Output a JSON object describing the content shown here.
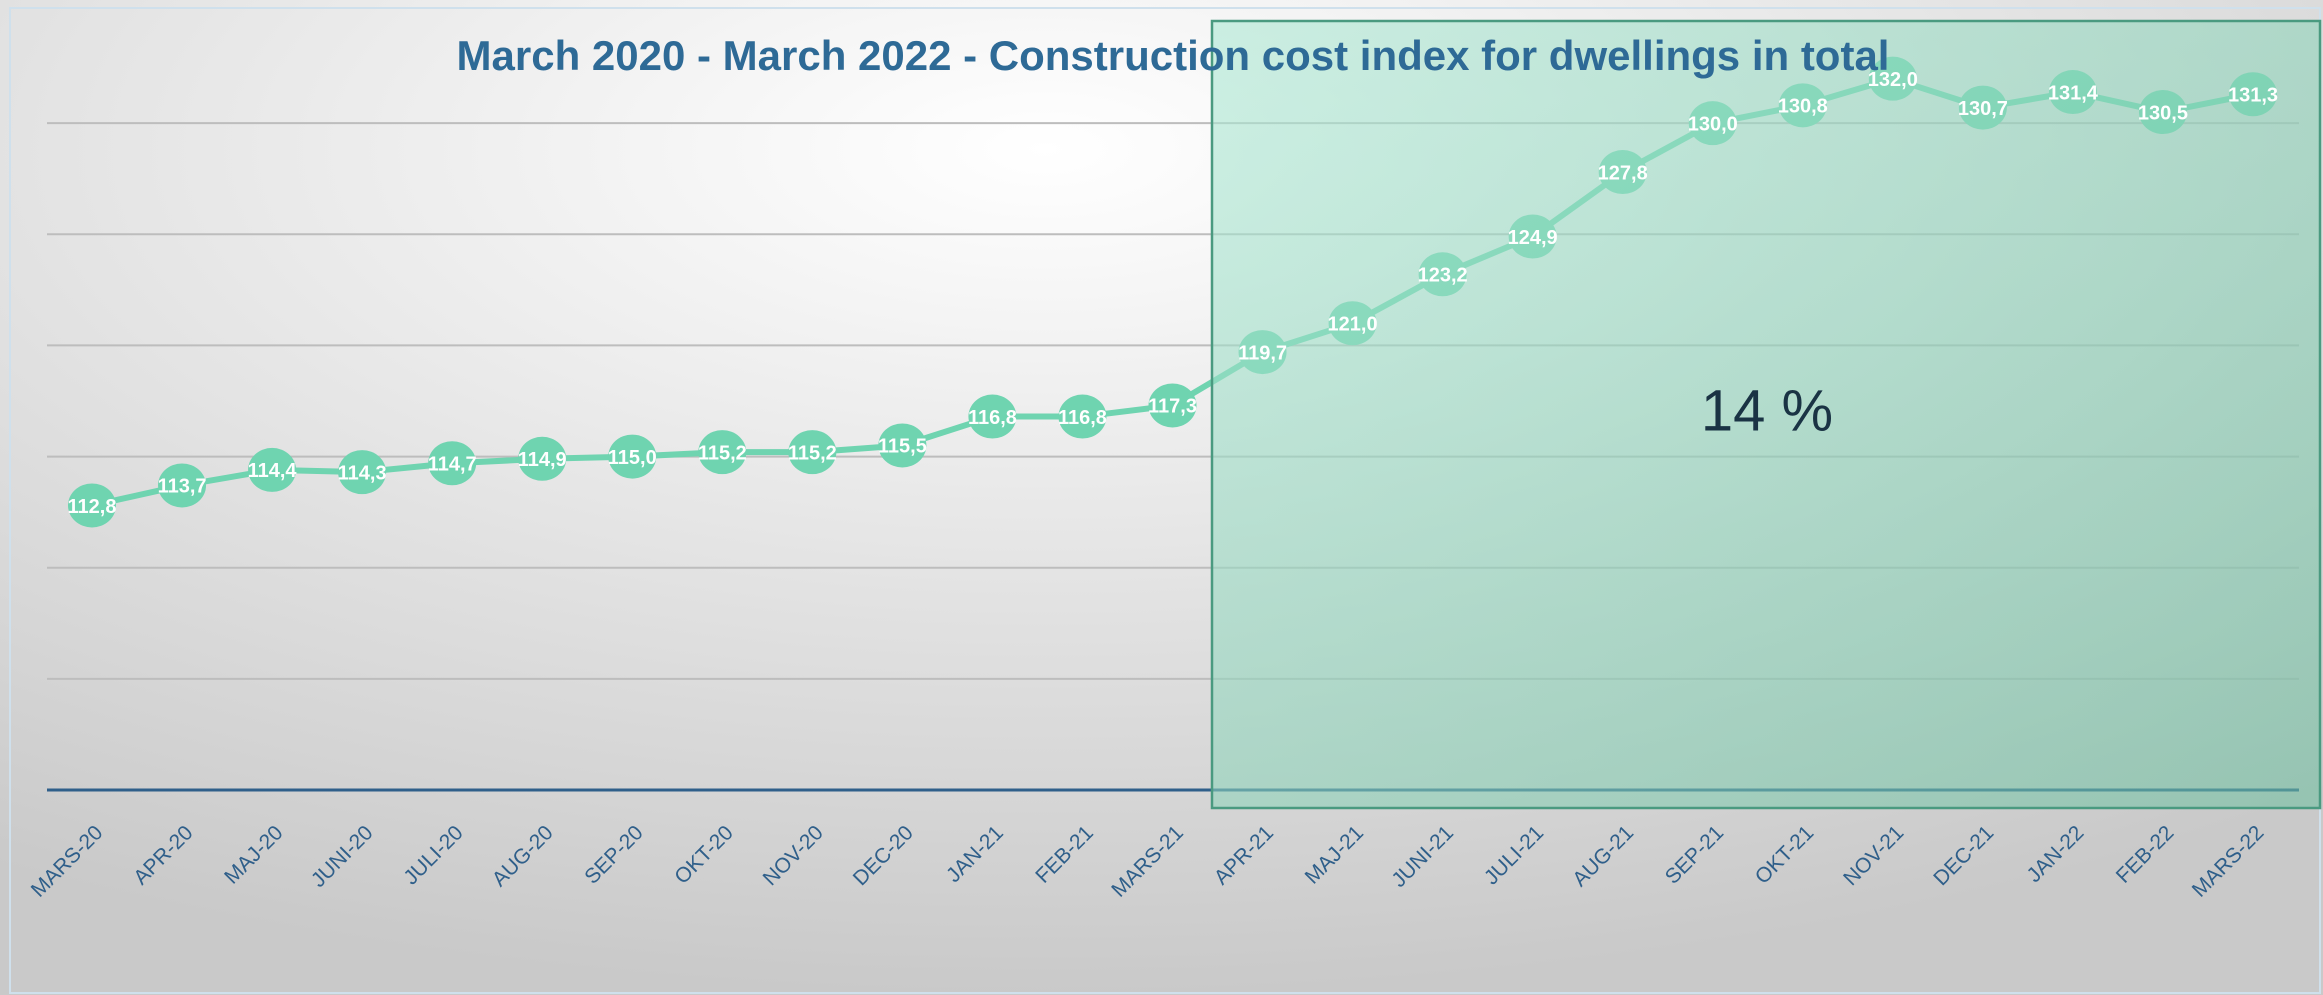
{
  "chart_data": {
    "type": "line",
    "title": "March 2020 - March 2022 - Construction cost index for dwellings in total",
    "annotation": "14 %",
    "categories": [
      "MARS-20",
      "APR-20",
      "MAJ-20",
      "JUNI-20",
      "JULI-20",
      "AUG-20",
      "SEP-20",
      "OKT-20",
      "NOV-20",
      "DEC-20",
      "JAN-21",
      "FEB-21",
      "MARS-21",
      "APR-21",
      "MAJ-21",
      "JUNI-21",
      "JULI-21",
      "AUG-21",
      "SEP-21",
      "OKT-21",
      "NOV-21",
      "DEC-21",
      "JAN-22",
      "FEB-22",
      "MARS-22"
    ],
    "series": [
      {
        "name": "Construction cost index",
        "color": "#6fd4b0",
        "values": [
          112.8,
          113.7,
          114.4,
          114.3,
          114.7,
          114.9,
          115.0,
          115.2,
          115.2,
          115.5,
          116.8,
          116.8,
          117.3,
          119.7,
          121.0,
          123.2,
          124.9,
          127.8,
          130.0,
          130.8,
          132.0,
          130.7,
          131.4,
          130.5,
          131.3
        ],
        "value_labels": [
          "112,8",
          "113,7",
          "114,4",
          "114,3",
          "114,7",
          "114,9",
          "115,0",
          "115,2",
          "115,2",
          "115,5",
          "116,8",
          "116,8",
          "117,3",
          "119,7",
          "121,0",
          "123,2",
          "124,9",
          "127,8",
          "130,0",
          "130,8",
          "132,0",
          "130,7",
          "131,4",
          "130,5",
          "131,3"
        ]
      }
    ],
    "ylim": [
      100,
      135
    ],
    "gridlines": [
      105,
      110,
      115,
      120,
      125,
      130
    ],
    "grid": true
  }
}
